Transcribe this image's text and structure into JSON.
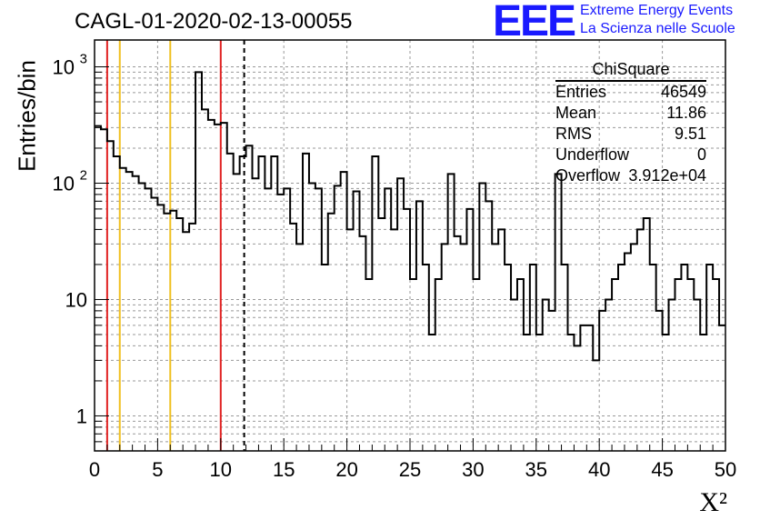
{
  "title": "CAGL-01-2020-02-13-00055",
  "logo": {
    "mark": "EEE",
    "line1": "Extreme Energy Events",
    "line2": "La Scienza nelle Scuole"
  },
  "stats": {
    "name": "ChiSquare",
    "rows": [
      {
        "label": "Entries",
        "value": "46549"
      },
      {
        "label": "Mean",
        "value": "11.86"
      },
      {
        "label": "RMS",
        "value": "9.51"
      },
      {
        "label": "Underflow",
        "value": "0"
      },
      {
        "label": "Overflow",
        "value": "3.912e+04"
      }
    ]
  },
  "chart_data": {
    "type": "histogram",
    "ylabel": "Entries/bin",
    "xlabel": "X²",
    "xlim": [
      0,
      50
    ],
    "ylim": [
      0.5,
      1700
    ],
    "yscale": "log",
    "grid": true,
    "bin_width": 0.5,
    "x_ticks": [
      0,
      5,
      10,
      15,
      20,
      25,
      30,
      35,
      40,
      45,
      50
    ],
    "y_ticks": [
      {
        "value": 1,
        "label": "1"
      },
      {
        "value": 10,
        "label": "10"
      },
      {
        "value": 100,
        "label": "10",
        "exp": "2"
      },
      {
        "value": 1000,
        "label": "10",
        "exp": "3"
      }
    ],
    "values": [
      310,
      290,
      230,
      170,
      135,
      125,
      115,
      100,
      90,
      75,
      65,
      55,
      58,
      50,
      38,
      45,
      900,
      430,
      350,
      320,
      330,
      180,
      120,
      170,
      210,
      110,
      170,
      90,
      170,
      80,
      90,
      45,
      30,
      180,
      100,
      90,
      20,
      55,
      95,
      125,
      40,
      85,
      35,
      15,
      170,
      50,
      90,
      40,
      110,
      60,
      15,
      70,
      20,
      5,
      15,
      30,
      120,
      35,
      30,
      60,
      15,
      100,
      70,
      30,
      40,
      20,
      10,
      15,
      5,
      20,
      5,
      10,
      8,
      120,
      20,
      5,
      4,
      6,
      6,
      3,
      8,
      10,
      15,
      20,
      25,
      30,
      40,
      50,
      20,
      8,
      5,
      10,
      15,
      20,
      15,
      10,
      5,
      20,
      15,
      6
    ],
    "reference_lines": [
      {
        "x": 1,
        "color": "#e02020",
        "style": "solid"
      },
      {
        "x": 2,
        "color": "#f0c020",
        "style": "solid"
      },
      {
        "x": 6,
        "color": "#f0c020",
        "style": "solid"
      },
      {
        "x": 10,
        "color": "#e02020",
        "style": "solid"
      },
      {
        "x": 11.86,
        "color": "#000000",
        "style": "dashed"
      }
    ]
  }
}
